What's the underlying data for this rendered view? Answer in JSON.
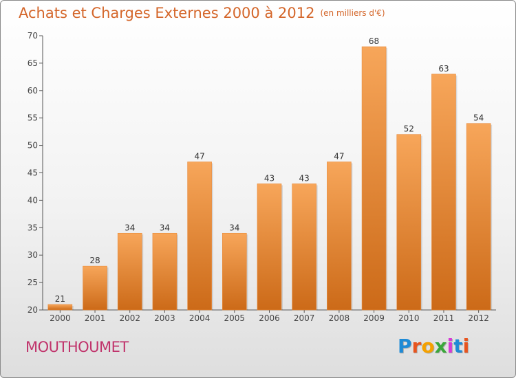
{
  "header": {
    "title": "Achats et Charges Externes 2000 à 2012",
    "subtitle": "(en milliers d'€)"
  },
  "location": "MOUTHOUMET",
  "logo": {
    "letters": [
      "P",
      "r",
      "o",
      "x",
      "i",
      "t",
      "i"
    ],
    "colors": [
      "#1e8ad6",
      "#e8541e",
      "#f5a100",
      "#3aa73a",
      "#d63ad6",
      "#1e8ad6",
      "#e8541e"
    ]
  },
  "chart_data": {
    "type": "bar",
    "categories": [
      "2000",
      "2001",
      "2002",
      "2003",
      "2004",
      "2005",
      "2006",
      "2007",
      "2008",
      "2009",
      "2010",
      "2011",
      "2012"
    ],
    "values": [
      21,
      28,
      34,
      34,
      47,
      34,
      43,
      43,
      47,
      68,
      52,
      63,
      54
    ],
    "title": "Achats et Charges Externes 2000 à 2012",
    "subtitle": "(en milliers d'€)",
    "ylim": [
      20,
      70
    ],
    "yticks": [
      20,
      25,
      30,
      35,
      40,
      45,
      50,
      55,
      60,
      65,
      70
    ],
    "grid": false,
    "colors": {
      "bar_top": "#f7a65a",
      "bar_bottom": "#cc6a18"
    }
  }
}
